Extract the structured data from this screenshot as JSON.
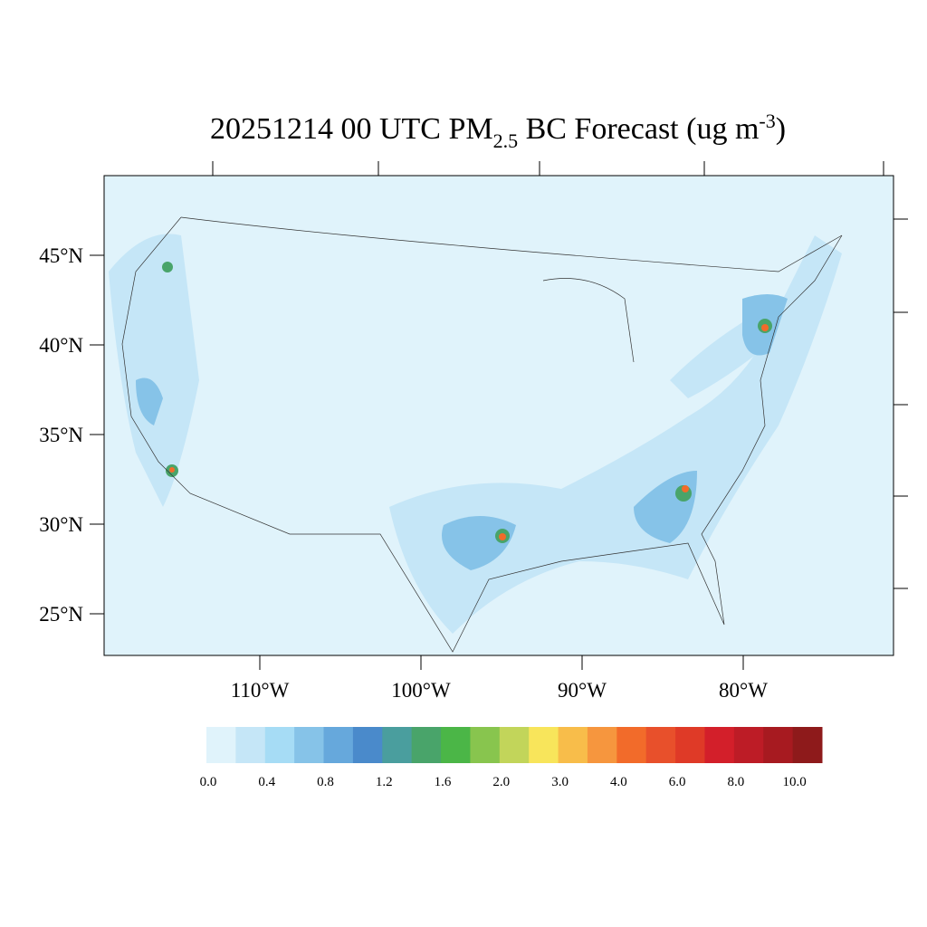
{
  "title": {
    "main": "20251214 00 UTC PM",
    "sub": "2.5",
    "rest": " BC Forecast (ug m",
    "sup": "-3",
    "end": ")"
  },
  "lat_labels": [
    "45°N",
    "40°N",
    "35°N",
    "30°N",
    "25°N"
  ],
  "lon_labels": [
    "110°W",
    "100°W",
    "90°W",
    "80°W"
  ],
  "colorbar": {
    "labels": [
      "0.0",
      "0.4",
      "0.8",
      "1.2",
      "1.6",
      "2.0",
      "3.0",
      "4.0",
      "6.0",
      "8.0",
      "10.0"
    ],
    "colors": [
      "#e0f3fb",
      "#c5e6f7",
      "#a6dcf5",
      "#86c3e8",
      "#66a8dc",
      "#4a8acb",
      "#4a9e9e",
      "#49a46a",
      "#4bb647",
      "#88c54e",
      "#c2d55a",
      "#f8e55b",
      "#f8bd4a",
      "#f6963e",
      "#f26b2a",
      "#e8502b",
      "#df3a27",
      "#d31f2a",
      "#bd1c26",
      "#a71a20",
      "#8e1a1b"
    ]
  }
}
